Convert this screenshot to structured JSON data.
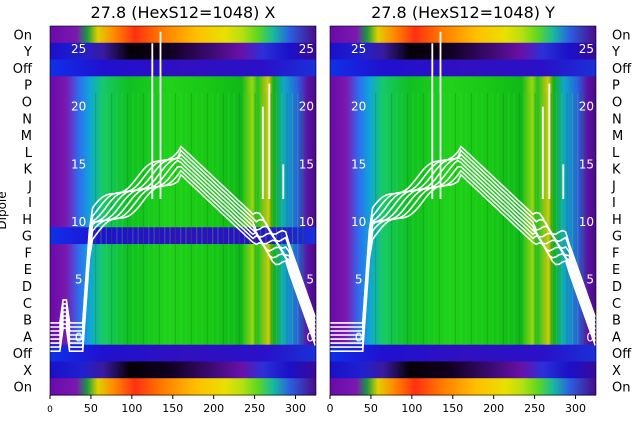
{
  "chart_data": [
    {
      "type": "heatmap",
      "title": "27.8 (HexS12=1048) X",
      "ylabel": "Dipole",
      "xlim": [
        0,
        325
      ],
      "x_ticks": [
        "0",
        "50",
        "100",
        "150",
        "200",
        "250",
        "300"
      ],
      "row_labels": [
        "On",
        "Y",
        "Off",
        "P",
        "O",
        "N",
        "M",
        "L",
        "K",
        "J",
        "I",
        "H",
        "G",
        "F",
        "E",
        "D",
        "C",
        "B",
        "A",
        "Off",
        "X",
        "On"
      ],
      "inner_ylim": [
        -5,
        27
      ],
      "inner_y_ticks": [
        "0",
        "5",
        "10",
        "15",
        "20",
        "25"
      ],
      "grid": false
    },
    {
      "type": "heatmap",
      "title": "27.8 (HexS12=1048) Y",
      "xlim": [
        0,
        325
      ],
      "x_ticks": [
        "0",
        "50",
        "100",
        "150",
        "200",
        "250",
        "300"
      ],
      "row_labels": [
        "On",
        "Y",
        "Off",
        "P",
        "O",
        "N",
        "M",
        "L",
        "K",
        "J",
        "I",
        "H",
        "G",
        "F",
        "E",
        "D",
        "C",
        "B",
        "A",
        "Off",
        "X",
        "On"
      ],
      "inner_ylim": [
        -5,
        27
      ],
      "inner_y_ticks": [
        "0",
        "5",
        "10",
        "15",
        "20",
        "25"
      ],
      "grid": false
    }
  ]
}
